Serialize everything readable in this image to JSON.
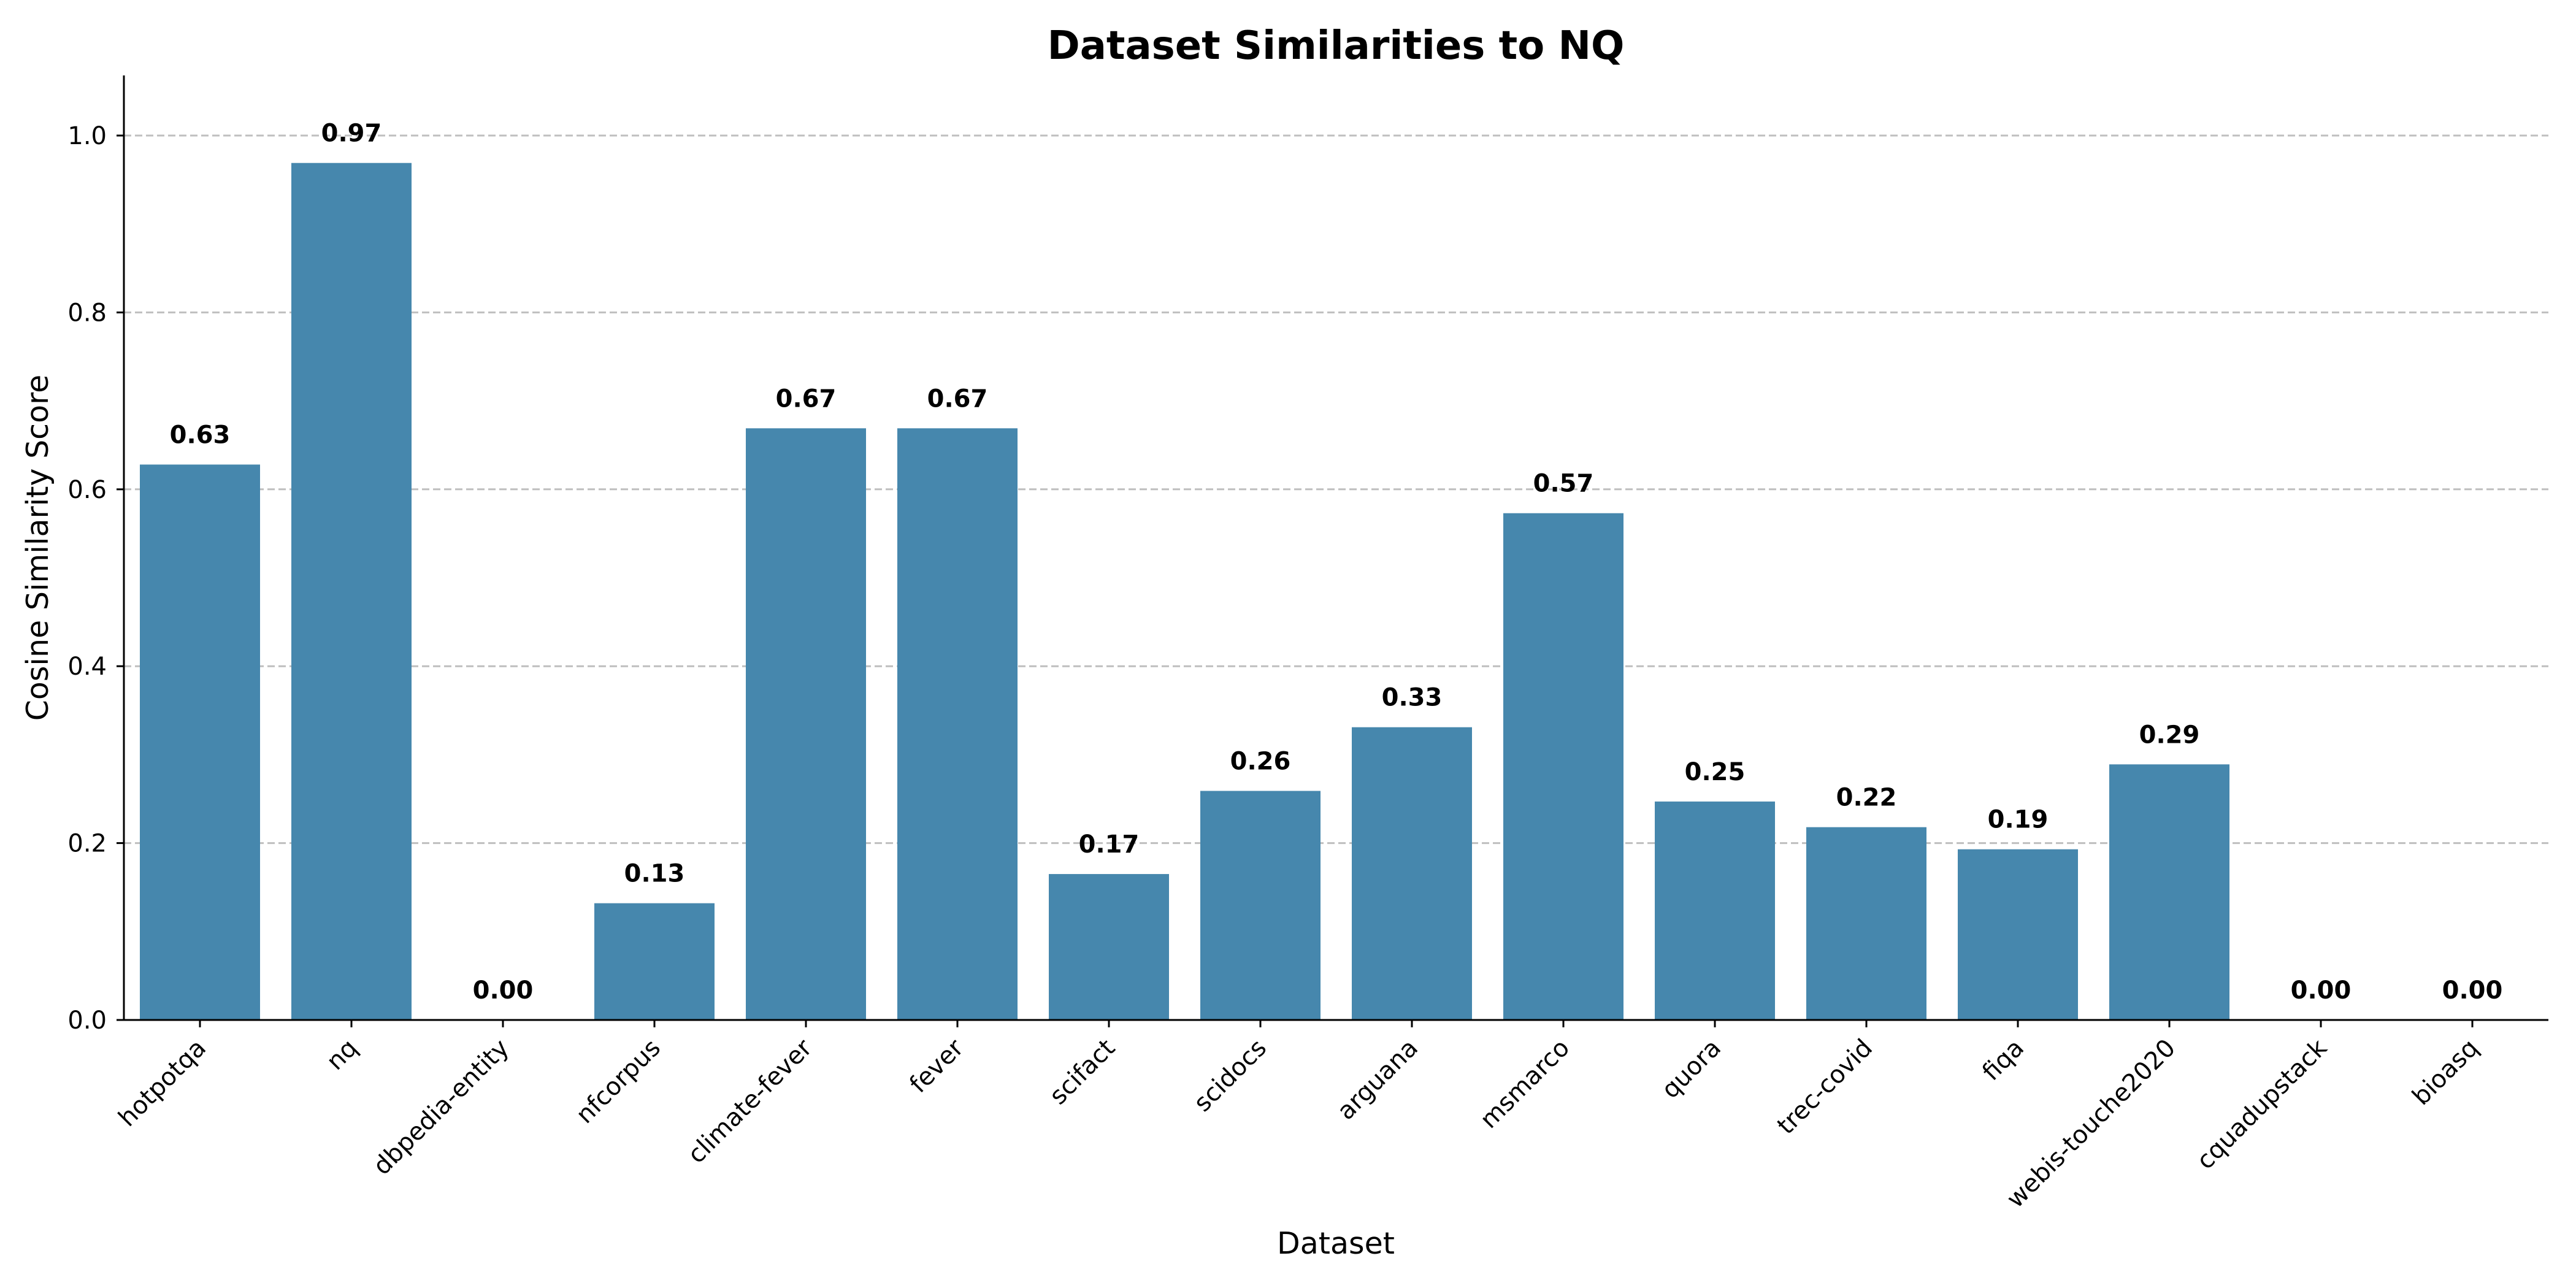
{
  "chart_data": {
    "type": "bar",
    "title": "Dataset Similarities to NQ",
    "xlabel": "Dataset",
    "ylabel": "Cosine Similarity Score",
    "categories": [
      "hotpotqa",
      "nq",
      "dbpedia-entity",
      "nfcorpus",
      "climate-fever",
      "fever",
      "scifact",
      "scidocs",
      "arguana",
      "msmarco",
      "quora",
      "trec-covid",
      "fiqa",
      "webis-touche2020",
      "cquadupstack",
      "bioasq"
    ],
    "values": [
      0.628,
      0.969,
      0.0,
      0.132,
      0.669,
      0.669,
      0.165,
      0.259,
      0.331,
      0.573,
      0.247,
      0.218,
      0.193,
      0.289,
      0.0,
      0.0
    ],
    "value_labels": [
      "0.63",
      "0.97",
      "0.00",
      "0.13",
      "0.67",
      "0.67",
      "0.17",
      "0.26",
      "0.33",
      "0.57",
      "0.25",
      "0.22",
      "0.19",
      "0.29",
      "0.00",
      "0.00"
    ],
    "yticks": [
      0.0,
      0.2,
      0.4,
      0.6,
      0.8,
      1.0
    ],
    "ytick_labels": [
      "0.0",
      "0.2",
      "0.4",
      "0.6",
      "0.8",
      "1.0"
    ],
    "ylim": [
      0,
      1.067
    ],
    "grid": "y-dashed",
    "bar_color": "#4687ad",
    "grid_color": "#bfbfbf"
  }
}
